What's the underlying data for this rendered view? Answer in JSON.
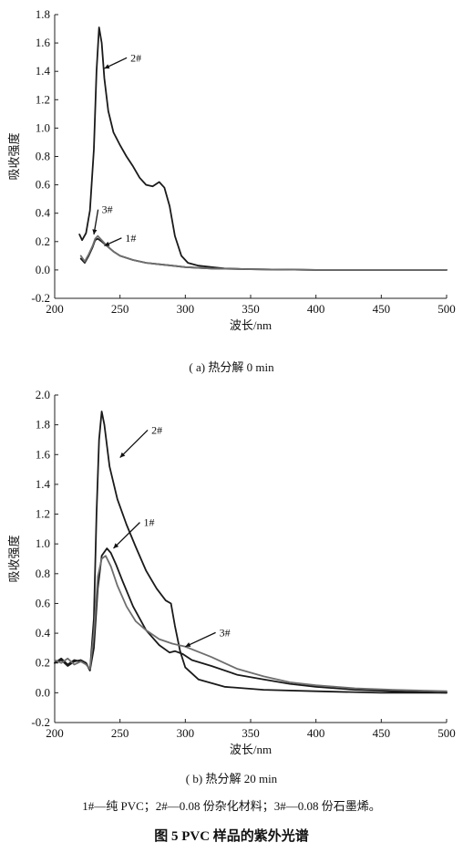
{
  "figure_title": "图 5   PVC 样品的紫外光谱",
  "captions": {
    "a": "( a) 热分解 0 min",
    "b": "( b) 热分解 20 min"
  },
  "legend_text": "1#—纯 PVC；2#—0.08 份杂化材料；3#—0.08 份石墨烯。",
  "colors": {
    "s1": "#1a1a1a",
    "s2": "#1a1a1a",
    "s3": "#6e6e6e"
  },
  "chart_data": [
    {
      "type": "line",
      "xlabel": "波长/nm",
      "ylabel": "吸收强度",
      "xlim": [
        200,
        500
      ],
      "ylim": [
        -0.2,
        1.8
      ],
      "xticks": [
        200,
        250,
        300,
        350,
        400,
        450,
        500
      ],
      "yticks": [
        -0.2,
        0.0,
        0.2,
        0.4,
        0.6,
        0.8,
        1.0,
        1.2,
        1.4,
        1.6,
        1.8
      ],
      "series": [
        {
          "name": "1#",
          "color_key": "s1",
          "x": [
            220,
            223,
            226,
            229,
            231,
            233,
            236,
            240,
            245,
            250,
            260,
            270,
            280,
            290,
            300,
            320,
            350,
            400,
            450,
            500
          ],
          "y": [
            0.08,
            0.05,
            0.1,
            0.16,
            0.21,
            0.22,
            0.2,
            0.17,
            0.13,
            0.1,
            0.07,
            0.05,
            0.04,
            0.03,
            0.02,
            0.01,
            0.005,
            0.0,
            0.0,
            0.0
          ]
        },
        {
          "name": "2#",
          "color_key": "s2",
          "x": [
            219,
            221,
            224,
            227,
            230,
            232,
            234,
            236,
            238,
            241,
            245,
            250,
            255,
            260,
            265,
            270,
            275,
            280,
            284,
            288,
            292,
            297,
            302,
            310,
            320,
            330,
            350,
            400,
            450,
            500
          ],
          "y": [
            0.25,
            0.21,
            0.26,
            0.42,
            0.85,
            1.4,
            1.71,
            1.6,
            1.35,
            1.12,
            0.97,
            0.88,
            0.8,
            0.73,
            0.65,
            0.6,
            0.59,
            0.62,
            0.58,
            0.45,
            0.24,
            0.1,
            0.05,
            0.03,
            0.02,
            0.01,
            0.005,
            0.0,
            0.0,
            0.0
          ]
        },
        {
          "name": "3#",
          "color_key": "s3",
          "x": [
            220,
            223,
            226,
            229,
            231,
            233,
            236,
            240,
            245,
            250,
            260,
            270,
            280,
            290,
            300,
            320,
            350,
            400,
            450,
            500
          ],
          "y": [
            0.1,
            0.06,
            0.11,
            0.17,
            0.22,
            0.24,
            0.21,
            0.17,
            0.13,
            0.1,
            0.07,
            0.05,
            0.04,
            0.03,
            0.02,
            0.01,
            0.005,
            0.0,
            0.0,
            0.0
          ]
        }
      ],
      "annotations": [
        {
          "text": "2#",
          "x": 258,
          "y": 1.47,
          "arrow_to": [
            238,
            1.42
          ]
        },
        {
          "text": "3#",
          "x": 236,
          "y": 0.4,
          "arrow_to": [
            230,
            0.25
          ]
        },
        {
          "text": "1#",
          "x": 254,
          "y": 0.2,
          "arrow_to": [
            238,
            0.17
          ]
        }
      ]
    },
    {
      "type": "line",
      "xlabel": "波长/nm",
      "ylabel": "吸收强度",
      "xlim": [
        200,
        500
      ],
      "ylim": [
        -0.2,
        2.0
      ],
      "xticks": [
        200,
        250,
        300,
        350,
        400,
        450,
        500
      ],
      "yticks": [
        -0.2,
        0.0,
        0.2,
        0.4,
        0.6,
        0.8,
        1.0,
        1.2,
        1.4,
        1.6,
        1.8,
        2.0
      ],
      "series": [
        {
          "name": "1#",
          "color_key": "s1",
          "x": [
            200,
            205,
            210,
            215,
            220,
            224,
            227,
            230,
            233,
            236,
            240,
            243,
            247,
            252,
            260,
            270,
            280,
            288,
            292,
            298,
            305,
            320,
            340,
            360,
            380,
            400,
            430,
            460,
            500
          ],
          "y": [
            0.2,
            0.22,
            0.18,
            0.21,
            0.22,
            0.2,
            0.15,
            0.3,
            0.7,
            0.92,
            0.97,
            0.94,
            0.86,
            0.75,
            0.58,
            0.42,
            0.32,
            0.27,
            0.28,
            0.26,
            0.22,
            0.18,
            0.12,
            0.09,
            0.06,
            0.04,
            0.02,
            0.01,
            0.0
          ]
        },
        {
          "name": "2#",
          "color_key": "s2",
          "x": [
            200,
            205,
            210,
            215,
            220,
            224,
            227,
            230,
            232,
            234,
            236,
            238,
            242,
            248,
            255,
            262,
            270,
            278,
            285,
            289,
            292,
            296,
            300,
            310,
            330,
            360,
            400,
            450,
            500
          ],
          "y": [
            0.2,
            0.23,
            0.19,
            0.22,
            0.21,
            0.2,
            0.15,
            0.5,
            1.2,
            1.7,
            1.89,
            1.8,
            1.52,
            1.3,
            1.13,
            0.98,
            0.82,
            0.7,
            0.62,
            0.6,
            0.45,
            0.28,
            0.17,
            0.09,
            0.04,
            0.02,
            0.01,
            0.0,
            0.0
          ]
        },
        {
          "name": "3#",
          "color_key": "s3",
          "x": [
            200,
            205,
            210,
            215,
            220,
            224,
            227,
            230,
            233,
            236,
            239,
            243,
            248,
            255,
            262,
            270,
            280,
            290,
            300,
            320,
            340,
            360,
            380,
            400,
            430,
            460,
            500
          ],
          "y": [
            0.22,
            0.2,
            0.23,
            0.19,
            0.21,
            0.19,
            0.16,
            0.4,
            0.78,
            0.9,
            0.92,
            0.85,
            0.72,
            0.58,
            0.48,
            0.42,
            0.36,
            0.33,
            0.31,
            0.24,
            0.16,
            0.11,
            0.07,
            0.05,
            0.03,
            0.02,
            0.01
          ]
        }
      ],
      "annotations": [
        {
          "text": "2#",
          "x": 274,
          "y": 1.74,
          "arrow_to": [
            250,
            1.58
          ]
        },
        {
          "text": "1#",
          "x": 268,
          "y": 1.12,
          "arrow_to": [
            245,
            0.97
          ]
        },
        {
          "text": "3#",
          "x": 326,
          "y": 0.38,
          "arrow_to": [
            300,
            0.31
          ]
        }
      ]
    }
  ]
}
